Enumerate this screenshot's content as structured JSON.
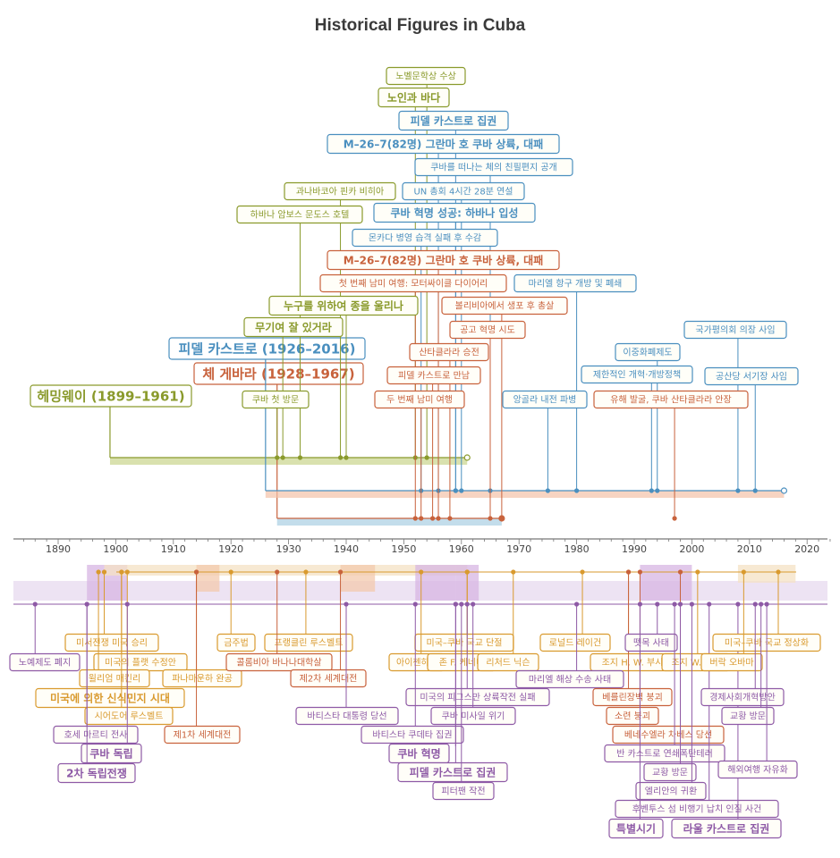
{
  "title": "Historical Figures in Cuba",
  "axis": {
    "min": 1880,
    "max": 2024,
    "ticks": [
      1890,
      1900,
      1910,
      1920,
      1930,
      1940,
      1950,
      1960,
      1970,
      1980,
      1990,
      2000,
      2010,
      2020
    ]
  },
  "colors": {
    "hemingway": "#8a9a2c",
    "che": "#c8623c",
    "fidel": "#4a8fbf",
    "us": "#d99a2e",
    "cuba": "#8e5aa6"
  },
  "persons": [
    {
      "label": "헤밍웨이 (1899–1961)",
      "color": "hemingway",
      "start": 1899,
      "end": 1961
    },
    {
      "label": "체 게바라 (1928–1967)",
      "color": "che",
      "start": 1928,
      "end": 1967
    },
    {
      "label": "피델 카스트로 (1926–2016)",
      "color": "fidel",
      "start": 1926,
      "end": 2016
    }
  ],
  "top_events": [
    {
      "label": "노벨문학상 수상",
      "color": "hemingway",
      "year": 1954
    },
    {
      "label": "노인과 바다",
      "color": "hemingway",
      "year": 1952
    },
    {
      "label": "피델 카스트로 집권",
      "color": "fidel",
      "year": 1959
    },
    {
      "label": "M–26–7(82명) 그란마 호 쿠바 상륙, 대패",
      "color": "fidel",
      "year": 1956
    },
    {
      "label": "쿠바를 떠나는 체의 친필편지 공개",
      "color": "fidel",
      "year": 1965
    },
    {
      "label": "과나바코아 핀카 비히아",
      "color": "hemingway",
      "year": 1939
    },
    {
      "label": "UN 총회 4시간 28분 연설",
      "color": "fidel",
      "year": 1960
    },
    {
      "label": "하바나 암보스 문도스 호텔",
      "color": "hemingway",
      "year": 1932
    },
    {
      "label": "쿠바 혁명 성공: 하바나 입성",
      "color": "fidel",
      "year": 1959
    },
    {
      "label": "몬카다 병영 습격 실패 후 수감",
      "color": "fidel",
      "year": 1953
    },
    {
      "label": "M–26–7(82명) 그란마 호 쿠바 상륙, 대패",
      "color": "che",
      "year": 1956
    },
    {
      "label": "첫 번째 남미 여행: 모터싸이클 다이어리",
      "color": "che",
      "year": 1952
    },
    {
      "label": "마리엘 항구 개방 및 폐쇄",
      "color": "fidel",
      "year": 1980
    },
    {
      "label": "누구를 위하여 종을 울리나",
      "color": "hemingway",
      "year": 1940
    },
    {
      "label": "볼리비아에서 생포 후 총살",
      "color": "che",
      "year": 1967
    },
    {
      "label": "무기여 잘 있거라",
      "color": "hemingway",
      "year": 1929
    },
    {
      "label": "공고 혁명 시도",
      "color": "che",
      "year": 1965
    },
    {
      "label": "국가평의회 의장 사임",
      "color": "fidel",
      "year": 2008
    },
    {
      "label": "산타클라라 승전",
      "color": "che",
      "year": 1958
    },
    {
      "label": "이중화폐제도",
      "color": "fidel",
      "year": 1994
    },
    {
      "label": "제한적인 개혁·개방정책",
      "color": "fidel",
      "year": 1993
    },
    {
      "label": "공산당 서기장 사임",
      "color": "fidel",
      "year": 2011
    },
    {
      "label": "피델 카스트로 만남",
      "color": "che",
      "year": 1955
    },
    {
      "label": "쿠바 첫 방문",
      "color": "hemingway",
      "year": 1928
    },
    {
      "label": "두 번째 남미 여행",
      "color": "che",
      "year": 1953
    },
    {
      "label": "앙골라 내전 파병",
      "color": "fidel",
      "year": 1975
    },
    {
      "label": "유해 발굴, 쿠바 산타클라라 안장",
      "color": "che",
      "year": 1997
    }
  ],
  "bottom_events": [
    {
      "label": "미서전쟁 미국 승리",
      "color": "us",
      "year": 1898
    },
    {
      "label": "노예제도 폐지",
      "color": "cuba",
      "year": 1886
    },
    {
      "label": "미국의 플랫 수정안",
      "color": "us",
      "year": 1901
    },
    {
      "label": "윌리엄 매킨리",
      "color": "us",
      "year": 1897
    },
    {
      "label": "미국에 의한 신식민지 시대",
      "color": "us",
      "year": 1902
    },
    {
      "label": "시어도어 루스벨트",
      "color": "us",
      "year": 1901
    },
    {
      "label": "호세 마르티 전사",
      "color": "cuba",
      "year": 1895
    },
    {
      "label": "쿠바 독립",
      "color": "cuba",
      "year": 1902
    },
    {
      "label": "2차 독립전쟁",
      "color": "cuba",
      "year": 1895
    },
    {
      "label": "금주법",
      "color": "us",
      "year": 1920
    },
    {
      "label": "파나마운하 완공",
      "color": "us",
      "year": 1914
    },
    {
      "label": "제1차 세계대전",
      "color": "che",
      "year": 1914
    },
    {
      "label": "프랭클린 루스벨트",
      "color": "us",
      "year": 1933
    },
    {
      "label": "콜롬비아 바나나대학살",
      "color": "che",
      "year": 1928
    },
    {
      "label": "제2차 세계대전",
      "color": "che",
      "year": 1939
    },
    {
      "label": "바티스타 대통령 당선",
      "color": "cuba",
      "year": 1940
    },
    {
      "label": "미국–쿠바 국교 단절",
      "color": "us",
      "year": 1961
    },
    {
      "label": "아이젠하워",
      "color": "us",
      "year": 1953
    },
    {
      "label": "존 F. 케네디",
      "color": "us",
      "year": 1961
    },
    {
      "label": "리처드 닉슨",
      "color": "us",
      "year": 1969
    },
    {
      "label": "미국의 피그스만 상륙작전 실패",
      "color": "cuba",
      "year": 1961
    },
    {
      "label": "바티스타 쿠데타 집권",
      "color": "cuba",
      "year": 1952
    },
    {
      "label": "쿠바 미사일 위기",
      "color": "cuba",
      "year": 1962
    },
    {
      "label": "쿠바 혁명",
      "color": "cuba",
      "year": 1959
    },
    {
      "label": "피델 카스트로 집권",
      "color": "cuba",
      "year": 1959
    },
    {
      "label": "피터팬 작전",
      "color": "cuba",
      "year": 1960
    },
    {
      "label": "로널드 레이건",
      "color": "us",
      "year": 1981
    },
    {
      "label": "조지 H. W. 부시",
      "color": "us",
      "year": 1989
    },
    {
      "label": "마리엘 해상 수송 사태",
      "color": "cuba",
      "year": 1980
    },
    {
      "label": "베를린장벽 붕괴",
      "color": "che",
      "year": 1989
    },
    {
      "label": "소련 붕괴",
      "color": "che",
      "year": 1991
    },
    {
      "label": "베네수엘라 차베스 당선",
      "color": "che",
      "year": 1998
    },
    {
      "label": "뗏목 사태",
      "color": "cuba",
      "year": 1994
    },
    {
      "label": "조지 W. 부시",
      "color": "us",
      "year": 2001
    },
    {
      "label": "반 카스트로 연쇄폭탄테러",
      "color": "cuba",
      "year": 1997
    },
    {
      "label": "교황 방문",
      "color": "cuba",
      "year": 1998
    },
    {
      "label": "엘리안의 귀환",
      "color": "cuba",
      "year": 2000
    },
    {
      "label": "후벤투스 섬 비행기 납치 인질 사건",
      "color": "cuba",
      "year": 2003
    },
    {
      "label": "특별시기",
      "color": "cuba",
      "year": 1991
    },
    {
      "label": "라울 카스트로 집권",
      "color": "cuba",
      "year": 2008
    },
    {
      "label": "미국–쿠바 국교 정상화",
      "color": "us",
      "year": 2015
    },
    {
      "label": "버락 오바마",
      "color": "us",
      "year": 2009
    },
    {
      "label": "경제사회개혁방안",
      "color": "cuba",
      "year": 2011
    },
    {
      "label": "교황 방문",
      "color": "cuba",
      "year": 2012
    },
    {
      "label": "해외여행 자유화",
      "color": "cuba",
      "year": 2013
    }
  ]
}
